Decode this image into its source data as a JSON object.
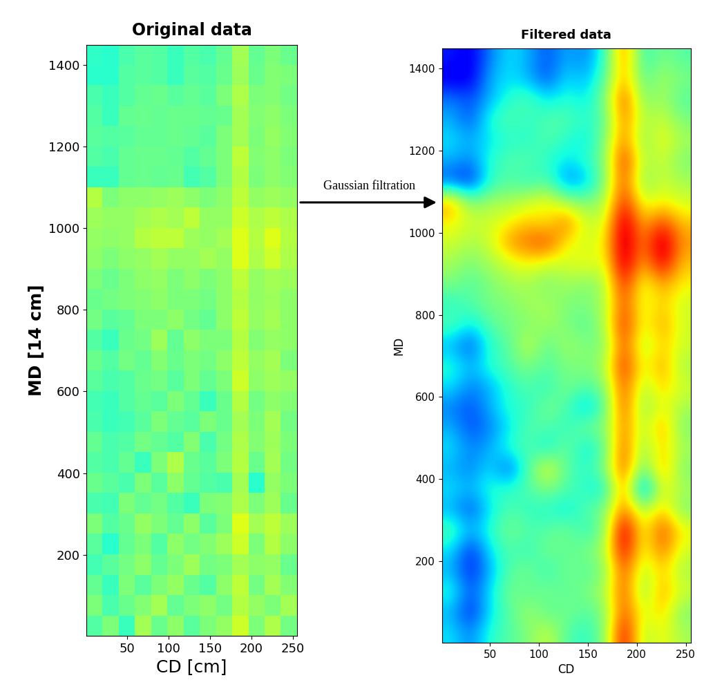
{
  "chart_data": [
    {
      "type": "heatmap",
      "title": "Original data",
      "x_label": "CD [cm]",
      "y_label": "MD [14 cm]",
      "annotation": "Gaussian filtration",
      "xlim": [
        1,
        255
      ],
      "ylim": [
        1,
        1450
      ],
      "xticks": [
        50,
        100,
        150,
        200,
        250
      ],
      "yticks": [
        200,
        400,
        600,
        800,
        1000,
        1200,
        1400
      ],
      "color_range": [
        0,
        1
      ],
      "cells": [
        [
          0.45,
          0.5,
          0.42,
          0.55,
          0.48,
          0.52,
          0.46,
          0.5,
          0.53,
          0.6,
          0.5,
          0.56,
          0.49
        ],
        [
          0.5,
          0.44,
          0.48,
          0.51,
          0.55,
          0.47,
          0.5,
          0.52,
          0.49,
          0.57,
          0.53,
          0.5,
          0.55
        ],
        [
          0.47,
          0.42,
          0.5,
          0.46,
          0.5,
          0.53,
          0.48,
          0.45,
          0.52,
          0.58,
          0.49,
          0.55,
          0.51
        ],
        [
          0.43,
          0.46,
          0.49,
          0.52,
          0.47,
          0.5,
          0.54,
          0.49,
          0.5,
          0.55,
          0.52,
          0.53,
          0.48
        ],
        [
          0.46,
          0.4,
          0.47,
          0.5,
          0.45,
          0.52,
          0.49,
          0.51,
          0.54,
          0.6,
          0.5,
          0.57,
          0.52
        ],
        [
          0.5,
          0.45,
          0.48,
          0.53,
          0.5,
          0.47,
          0.52,
          0.46,
          0.5,
          0.62,
          0.55,
          0.58,
          0.54
        ],
        [
          0.44,
          0.43,
          0.5,
          0.47,
          0.49,
          0.45,
          0.42,
          0.5,
          0.51,
          0.56,
          0.5,
          0.54,
          0.48
        ],
        [
          0.48,
          0.46,
          0.44,
          0.5,
          0.46,
          0.52,
          0.47,
          0.45,
          0.44,
          0.55,
          0.4,
          0.53,
          0.5
        ],
        [
          0.45,
          0.44,
          0.47,
          0.42,
          0.5,
          0.56,
          0.48,
          0.46,
          0.5,
          0.57,
          0.48,
          0.55,
          0.49
        ],
        [
          0.47,
          0.44,
          0.45,
          0.49,
          0.47,
          0.45,
          0.51,
          0.44,
          0.49,
          0.56,
          0.51,
          0.54,
          0.5
        ],
        [
          0.44,
          0.42,
          0.43,
          0.46,
          0.5,
          0.47,
          0.46,
          0.5,
          0.48,
          0.55,
          0.5,
          0.55,
          0.49
        ],
        [
          0.43,
          0.42,
          0.45,
          0.47,
          0.46,
          0.5,
          0.47,
          0.42,
          0.48,
          0.57,
          0.49,
          0.52,
          0.51
        ],
        [
          0.46,
          0.44,
          0.45,
          0.48,
          0.49,
          0.46,
          0.5,
          0.47,
          0.5,
          0.6,
          0.52,
          0.54,
          0.53
        ],
        [
          0.48,
          0.45,
          0.49,
          0.47,
          0.51,
          0.48,
          0.5,
          0.49,
          0.52,
          0.58,
          0.53,
          0.55,
          0.5
        ],
        [
          0.45,
          0.42,
          0.48,
          0.49,
          0.54,
          0.47,
          0.52,
          0.5,
          0.5,
          0.57,
          0.51,
          0.53,
          0.52
        ],
        [
          0.49,
          0.46,
          0.47,
          0.5,
          0.5,
          0.52,
          0.49,
          0.47,
          0.52,
          0.58,
          0.53,
          0.55,
          0.52
        ],
        [
          0.48,
          0.49,
          0.5,
          0.51,
          0.52,
          0.5,
          0.5,
          0.49,
          0.52,
          0.57,
          0.53,
          0.54,
          0.52
        ],
        [
          0.5,
          0.48,
          0.5,
          0.52,
          0.53,
          0.5,
          0.52,
          0.5,
          0.52,
          0.58,
          0.53,
          0.55,
          0.54
        ],
        [
          0.52,
          0.5,
          0.52,
          0.53,
          0.55,
          0.53,
          0.53,
          0.55,
          0.53,
          0.62,
          0.56,
          0.6,
          0.56
        ],
        [
          0.53,
          0.52,
          0.53,
          0.57,
          0.58,
          0.58,
          0.54,
          0.53,
          0.55,
          0.62,
          0.57,
          0.62,
          0.57
        ],
        [
          0.54,
          0.53,
          0.53,
          0.55,
          0.56,
          0.55,
          0.58,
          0.53,
          0.53,
          0.6,
          0.56,
          0.58,
          0.56
        ],
        [
          0.57,
          0.5,
          0.52,
          0.52,
          0.53,
          0.54,
          0.52,
          0.5,
          0.52,
          0.58,
          0.53,
          0.54,
          0.53
        ],
        [
          0.42,
          0.42,
          0.47,
          0.48,
          0.47,
          0.48,
          0.43,
          0.45,
          0.5,
          0.57,
          0.5,
          0.52,
          0.51
        ],
        [
          0.45,
          0.44,
          0.47,
          0.48,
          0.48,
          0.47,
          0.45,
          0.47,
          0.5,
          0.58,
          0.51,
          0.52,
          0.5
        ],
        [
          0.46,
          0.45,
          0.46,
          0.47,
          0.47,
          0.48,
          0.47,
          0.46,
          0.5,
          0.55,
          0.5,
          0.53,
          0.51
        ],
        [
          0.45,
          0.42,
          0.47,
          0.48,
          0.47,
          0.48,
          0.48,
          0.47,
          0.48,
          0.55,
          0.51,
          0.52,
          0.5
        ],
        [
          0.44,
          0.42,
          0.45,
          0.47,
          0.48,
          0.46,
          0.47,
          0.46,
          0.5,
          0.56,
          0.5,
          0.51,
          0.49
        ],
        [
          0.4,
          0.4,
          0.45,
          0.46,
          0.45,
          0.42,
          0.46,
          0.45,
          0.48,
          0.54,
          0.48,
          0.51,
          0.5
        ],
        [
          0.41,
          0.4,
          0.44,
          0.46,
          0.45,
          0.42,
          0.45,
          0.44,
          0.47,
          0.55,
          0.47,
          0.5,
          0.48
        ]
      ]
    },
    {
      "type": "heatmap",
      "title": "Filtered data",
      "x_label": "CD",
      "y_label": "MD",
      "xlim": [
        1,
        255
      ],
      "ylim": [
        1,
        1450
      ],
      "xticks": [
        50,
        100,
        150,
        200,
        250
      ],
      "yticks": [
        200,
        400,
        600,
        800,
        1000,
        1200,
        1400
      ],
      "color_range": [
        0,
        1
      ],
      "cells": [
        [
          0.35,
          0.25,
          0.4,
          0.45,
          0.5,
          0.6,
          0.45,
          0.4,
          0.5,
          0.95,
          0.55,
          0.65,
          0.55
        ],
        [
          0.3,
          0.15,
          0.35,
          0.45,
          0.55,
          0.45,
          0.5,
          0.45,
          0.5,
          0.85,
          0.6,
          0.7,
          0.5
        ],
        [
          0.4,
          0.2,
          0.35,
          0.5,
          0.45,
          0.5,
          0.45,
          0.5,
          0.55,
          0.85,
          0.5,
          0.75,
          0.6
        ],
        [
          0.3,
          0.15,
          0.3,
          0.45,
          0.5,
          0.4,
          0.5,
          0.45,
          0.5,
          0.85,
          0.55,
          0.7,
          0.55
        ],
        [
          0.35,
          0.15,
          0.35,
          0.45,
          0.4,
          0.5,
          0.45,
          0.5,
          0.55,
          0.95,
          0.6,
          0.8,
          0.6
        ],
        [
          0.45,
          0.3,
          0.4,
          0.5,
          0.45,
          0.45,
          0.5,
          0.4,
          0.5,
          1.0,
          0.6,
          0.85,
          0.65
        ],
        [
          0.3,
          0.2,
          0.35,
          0.45,
          0.4,
          0.4,
          0.35,
          0.45,
          0.5,
          0.8,
          0.55,
          0.7,
          0.5
        ],
        [
          0.35,
          0.3,
          0.4,
          0.4,
          0.45,
          0.5,
          0.45,
          0.4,
          0.35,
          0.8,
          0.2,
          0.65,
          0.55
        ],
        [
          0.3,
          0.25,
          0.35,
          0.2,
          0.45,
          0.65,
          0.45,
          0.4,
          0.5,
          0.85,
          0.45,
          0.75,
          0.5
        ],
        [
          0.35,
          0.25,
          0.3,
          0.4,
          0.45,
          0.35,
          0.5,
          0.35,
          0.45,
          0.85,
          0.5,
          0.7,
          0.55
        ],
        [
          0.3,
          0.2,
          0.25,
          0.35,
          0.45,
          0.45,
          0.4,
          0.5,
          0.5,
          0.8,
          0.55,
          0.75,
          0.5
        ],
        [
          0.25,
          0.2,
          0.3,
          0.4,
          0.4,
          0.5,
          0.45,
          0.3,
          0.45,
          0.85,
          0.5,
          0.65,
          0.55
        ],
        [
          0.35,
          0.25,
          0.3,
          0.4,
          0.45,
          0.4,
          0.5,
          0.45,
          0.5,
          0.85,
          0.55,
          0.7,
          0.6
        ],
        [
          0.4,
          0.3,
          0.4,
          0.45,
          0.5,
          0.45,
          0.5,
          0.5,
          0.55,
          0.9,
          0.6,
          0.75,
          0.55
        ],
        [
          0.3,
          0.2,
          0.4,
          0.45,
          0.6,
          0.45,
          0.55,
          0.5,
          0.5,
          0.85,
          0.55,
          0.7,
          0.6
        ],
        [
          0.45,
          0.35,
          0.45,
          0.5,
          0.5,
          0.55,
          0.5,
          0.45,
          0.55,
          0.9,
          0.6,
          0.75,
          0.6
        ],
        [
          0.4,
          0.45,
          0.5,
          0.5,
          0.55,
          0.55,
          0.5,
          0.5,
          0.55,
          0.85,
          0.6,
          0.7,
          0.6
        ],
        [
          0.5,
          0.45,
          0.5,
          0.55,
          0.55,
          0.5,
          0.55,
          0.5,
          0.55,
          0.9,
          0.6,
          0.75,
          0.65
        ],
        [
          0.55,
          0.5,
          0.55,
          0.6,
          0.65,
          0.6,
          0.6,
          0.65,
          0.6,
          1.0,
          0.7,
          0.95,
          0.7
        ],
        [
          0.6,
          0.55,
          0.6,
          0.75,
          0.8,
          0.85,
          0.65,
          0.6,
          0.65,
          1.0,
          0.75,
          1.0,
          0.75
        ],
        [
          0.65,
          0.6,
          0.6,
          0.65,
          0.7,
          0.65,
          0.8,
          0.6,
          0.6,
          1.0,
          0.7,
          0.85,
          0.7
        ],
        [
          0.75,
          0.5,
          0.55,
          0.55,
          0.6,
          0.65,
          0.55,
          0.5,
          0.55,
          0.9,
          0.6,
          0.65,
          0.6
        ],
        [
          0.2,
          0.15,
          0.4,
          0.45,
          0.4,
          0.45,
          0.25,
          0.3,
          0.5,
          0.85,
          0.5,
          0.6,
          0.55
        ],
        [
          0.3,
          0.25,
          0.4,
          0.45,
          0.45,
          0.4,
          0.35,
          0.4,
          0.5,
          0.9,
          0.55,
          0.6,
          0.5
        ],
        [
          0.35,
          0.3,
          0.35,
          0.4,
          0.4,
          0.45,
          0.4,
          0.35,
          0.5,
          0.8,
          0.5,
          0.65,
          0.55
        ],
        [
          0.3,
          0.2,
          0.4,
          0.45,
          0.4,
          0.45,
          0.45,
          0.4,
          0.45,
          0.8,
          0.55,
          0.6,
          0.5
        ],
        [
          0.25,
          0.2,
          0.3,
          0.4,
          0.45,
          0.35,
          0.4,
          0.35,
          0.5,
          0.85,
          0.5,
          0.55,
          0.45
        ],
        [
          0.1,
          0.1,
          0.3,
          0.35,
          0.3,
          0.2,
          0.35,
          0.3,
          0.45,
          0.75,
          0.45,
          0.55,
          0.5
        ],
        [
          0.15,
          0.1,
          0.25,
          0.35,
          0.3,
          0.2,
          0.3,
          0.25,
          0.4,
          0.8,
          0.4,
          0.5,
          0.45
        ]
      ]
    }
  ]
}
